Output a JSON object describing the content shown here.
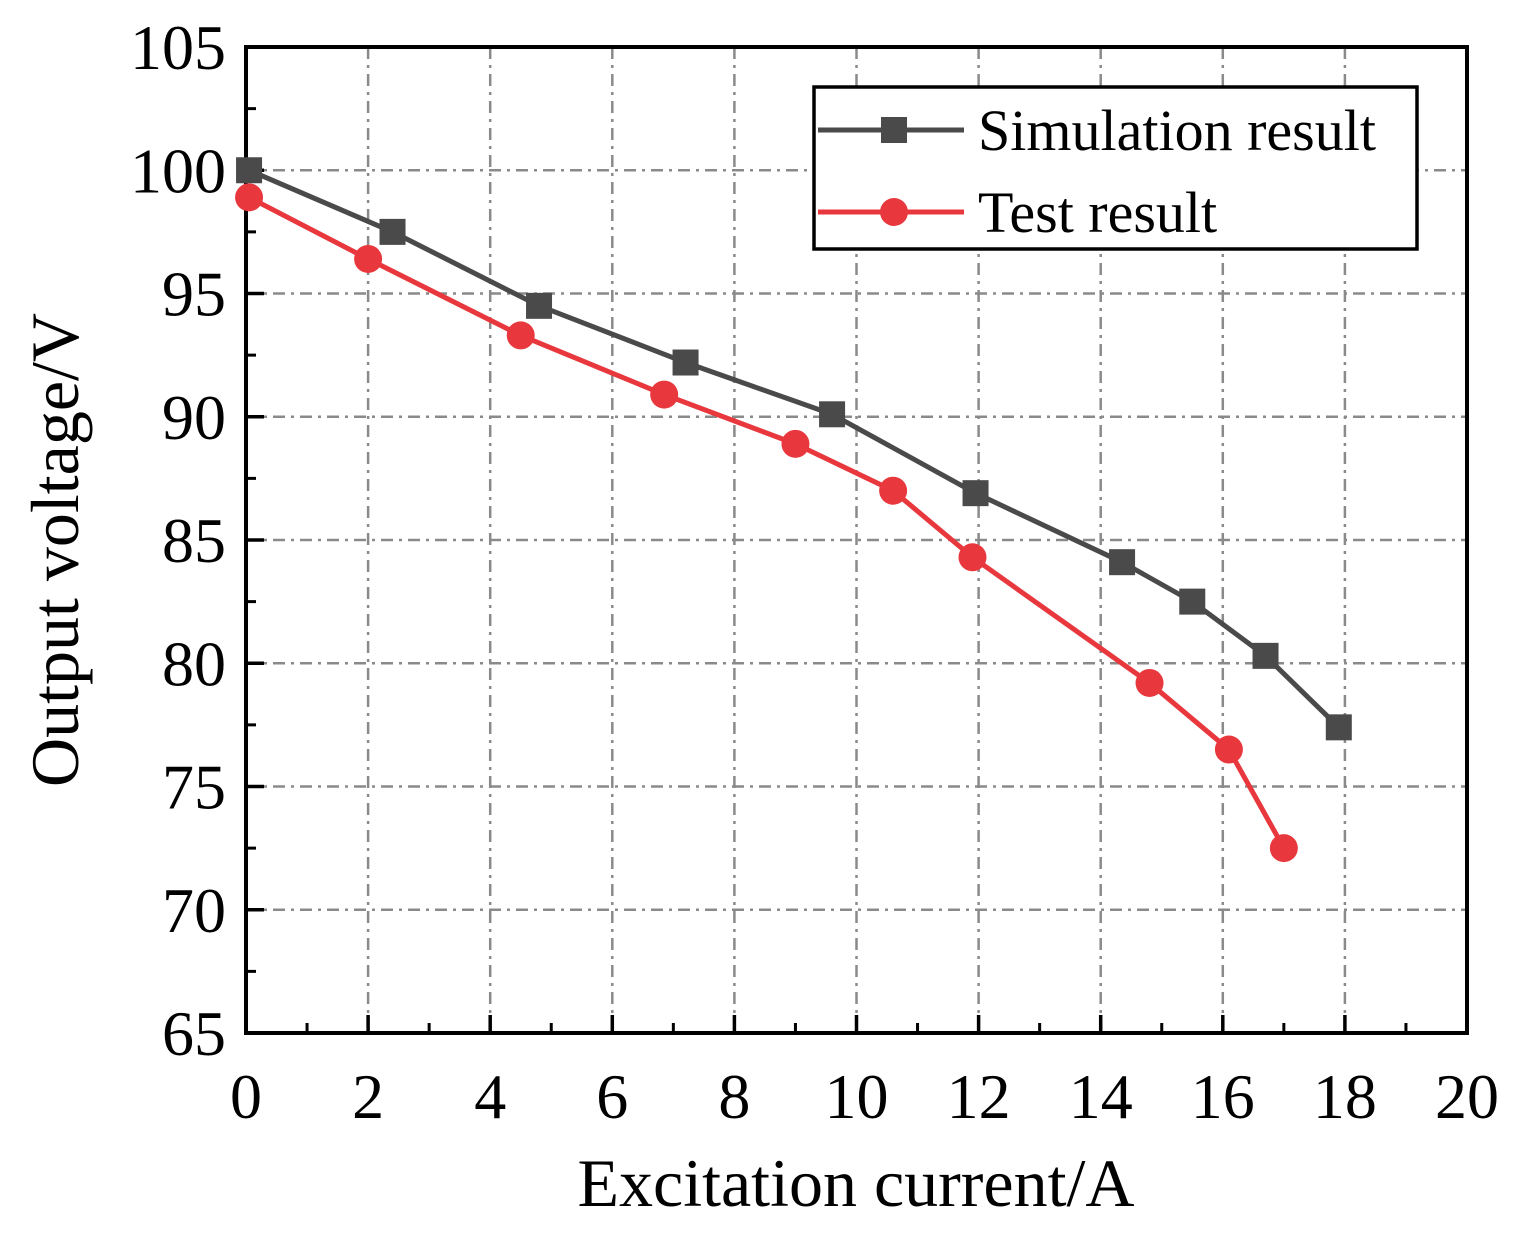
{
  "chart_data": {
    "type": "line",
    "title": "",
    "xlabel": "Excitation current/A",
    "ylabel": "Output voltage/V",
    "xlim": [
      0,
      20
    ],
    "ylim": [
      65,
      105
    ],
    "xticks": [
      "0",
      "2",
      "4",
      "6",
      "8",
      "10",
      "12",
      "14",
      "16",
      "18",
      "20"
    ],
    "yticks": [
      "65",
      "70",
      "75",
      "80",
      "85",
      "90",
      "95",
      "100",
      "105"
    ],
    "grid": true,
    "legend_position": "top-right",
    "series": [
      {
        "name": "Simulation result",
        "color": "#4a4a4a",
        "marker": "square",
        "x": [
          0.05,
          2.4,
          4.8,
          7.2,
          9.6,
          11.95,
          14.35,
          15.5,
          16.7,
          17.9
        ],
        "y": [
          100.0,
          97.5,
          94.5,
          92.2,
          90.1,
          86.9,
          84.1,
          82.5,
          80.3,
          77.4
        ]
      },
      {
        "name": "Test result",
        "color": "#e8383d",
        "marker": "circle",
        "x": [
          0.05,
          2.0,
          4.5,
          6.85,
          9.0,
          10.6,
          11.9,
          14.8,
          16.1,
          17.0
        ],
        "y": [
          98.9,
          96.4,
          93.3,
          90.9,
          88.9,
          87.0,
          84.3,
          79.2,
          76.5,
          72.5
        ]
      }
    ]
  }
}
